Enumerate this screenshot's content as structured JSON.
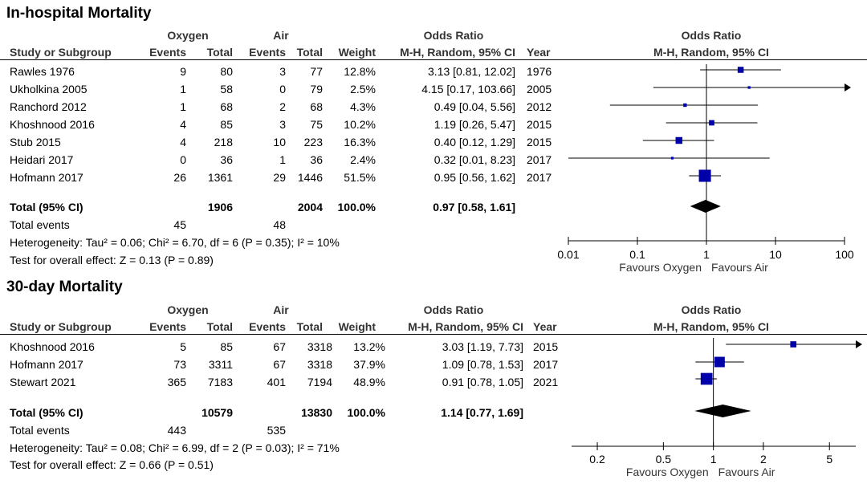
{
  "headers": {
    "oxygen": "Oxygen",
    "air": "Air",
    "study": "Study or Subgroup",
    "events": "Events",
    "total": "Total",
    "weight": "Weight",
    "or_title": "Odds Ratio",
    "or_method": "M-H, Random, 95% CI",
    "year": "Year"
  },
  "chart_data": [
    {
      "type": "forest",
      "title": "In-hospital Mortality",
      "axis": {
        "scale": "log",
        "range": [
          0.01,
          100
        ],
        "ticks": [
          "0.01",
          "0.1",
          "1",
          "10",
          "100"
        ],
        "tick_values": [
          0.01,
          0.1,
          1,
          10,
          100
        ],
        "favours_left": "Favours Oxygen",
        "favours_right": "Favours Air"
      },
      "studies": [
        {
          "name": "Rawles 1976",
          "oxy_events": "9",
          "oxy_total": "80",
          "air_events": "3",
          "air_total": "77",
          "weight": "12.8%",
          "ci_text": "3.13 [0.81, 12.02]",
          "year": "1976",
          "or": 3.13,
          "lo": 0.81,
          "hi": 12.02,
          "w": 12.8
        },
        {
          "name": "Ukholkina 2005",
          "oxy_events": "1",
          "oxy_total": "58",
          "air_events": "0",
          "air_total": "79",
          "weight": "2.5%",
          "ci_text": "4.15 [0.17, 103.66]",
          "year": "2005",
          "or": 4.15,
          "lo": 0.17,
          "hi": 103.66,
          "w": 2.5
        },
        {
          "name": "Ranchord 2012",
          "oxy_events": "1",
          "oxy_total": "68",
          "air_events": "2",
          "air_total": "68",
          "weight": "4.3%",
          "ci_text": "0.49 [0.04, 5.56]",
          "year": "2012",
          "or": 0.49,
          "lo": 0.04,
          "hi": 5.56,
          "w": 4.3
        },
        {
          "name": "Khoshnood 2016",
          "oxy_events": "4",
          "oxy_total": "85",
          "air_events": "3",
          "air_total": "75",
          "weight": "10.2%",
          "ci_text": "1.19 [0.26, 5.47]",
          "year": "2015",
          "or": 1.19,
          "lo": 0.26,
          "hi": 5.47,
          "w": 10.2
        },
        {
          "name": "Stub 2015",
          "oxy_events": "4",
          "oxy_total": "218",
          "air_events": "10",
          "air_total": "223",
          "weight": "16.3%",
          "ci_text": "0.40 [0.12, 1.29]",
          "year": "2015",
          "or": 0.4,
          "lo": 0.12,
          "hi": 1.29,
          "w": 16.3
        },
        {
          "name": "Heidari 2017",
          "oxy_events": "0",
          "oxy_total": "36",
          "air_events": "1",
          "air_total": "36",
          "weight": "2.4%",
          "ci_text": "0.32 [0.01, 8.23]",
          "year": "2017",
          "or": 0.32,
          "lo": 0.01,
          "hi": 8.23,
          "w": 2.4
        },
        {
          "name": "Hofmann 2017",
          "oxy_events": "26",
          "oxy_total": "1361",
          "air_events": "29",
          "air_total": "1446",
          "weight": "51.5%",
          "ci_text": "0.95 [0.56, 1.62]",
          "year": "2017",
          "or": 0.95,
          "lo": 0.56,
          "hi": 1.62,
          "w": 51.5
        }
      ],
      "total": {
        "label": "Total (95% CI)",
        "oxy_total": "1906",
        "air_total": "2004",
        "weight": "100.0%",
        "ci_text": "0.97 [0.58, 1.61]",
        "or": 0.97,
        "lo": 0.58,
        "hi": 1.61
      },
      "total_events": {
        "label": "Total events",
        "oxy": "45",
        "air": "48"
      },
      "heterogeneity": "Heterogeneity: Tau² = 0.06; Chi² = 6.70, df = 6 (P = 0.35); I² = 10%",
      "overall_effect": "Test for overall effect: Z = 0.13 (P = 0.89)"
    },
    {
      "type": "forest",
      "title": "30-day Mortality",
      "axis": {
        "scale": "log",
        "range": [
          0.14,
          7.2
        ],
        "ticks": [
          "0.2",
          "0.5",
          "1",
          "2",
          "5"
        ],
        "tick_values": [
          0.2,
          0.5,
          1,
          2,
          5
        ],
        "favours_left": "Favours Oxygen",
        "favours_right": "Favours Air"
      },
      "studies": [
        {
          "name": "Khoshnood 2016",
          "oxy_events": "5",
          "oxy_total": "85",
          "air_events": "67",
          "air_total": "3318",
          "weight": "13.2%",
          "ci_text": "3.03 [1.19, 7.73]",
          "year": "2015",
          "or": 3.03,
          "lo": 1.19,
          "hi": 7.73,
          "w": 13.2
        },
        {
          "name": "Hofmann 2017",
          "oxy_events": "73",
          "oxy_total": "3311",
          "air_events": "67",
          "air_total": "3318",
          "weight": "37.9%",
          "ci_text": "1.09 [0.78, 1.53]",
          "year": "2017",
          "or": 1.09,
          "lo": 0.78,
          "hi": 1.53,
          "w": 37.9
        },
        {
          "name": "Stewart 2021",
          "oxy_events": "365",
          "oxy_total": "7183",
          "air_events": "401",
          "air_total": "7194",
          "weight": "48.9%",
          "ci_text": "0.91 [0.78, 1.05]",
          "year": "2021",
          "or": 0.91,
          "lo": 0.78,
          "hi": 1.05,
          "w": 48.9
        }
      ],
      "total": {
        "label": "Total (95% CI)",
        "oxy_total": "10579",
        "air_total": "13830",
        "weight": "100.0%",
        "ci_text": "1.14 [0.77, 1.69]",
        "or": 1.14,
        "lo": 0.77,
        "hi": 1.69
      },
      "total_events": {
        "label": "Total events",
        "oxy": "443",
        "air": "535"
      },
      "heterogeneity": "Heterogeneity: Tau² = 0.08; Chi² = 6.99, df = 2 (P = 0.03); I² = 71%",
      "overall_effect": "Test for overall effect: Z = 0.66 (P = 0.51)"
    }
  ],
  "colors": {
    "box": "#0000a8",
    "diamond": "#000000",
    "line": "#000000",
    "header_text": "#333333"
  }
}
